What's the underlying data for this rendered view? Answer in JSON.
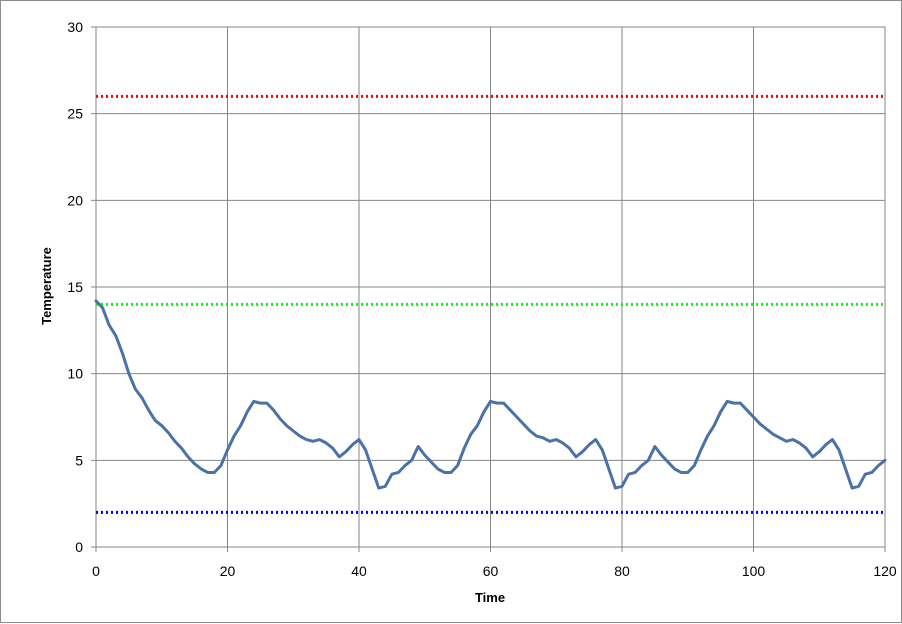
{
  "chart_data": {
    "type": "line",
    "title": "",
    "xlabel": "Time",
    "ylabel": "Temperature",
    "xlim": [
      0,
      120
    ],
    "ylim": [
      0,
      30
    ],
    "x_ticks": [
      0,
      20,
      40,
      60,
      80,
      100,
      120
    ],
    "y_ticks": [
      0,
      5,
      10,
      15,
      20,
      25,
      30
    ],
    "grid": true,
    "legend": "none",
    "reference_lines": [
      {
        "y": 26,
        "color": "#ff0000",
        "style": "dotted"
      },
      {
        "y": 14,
        "color": "#00ff00",
        "style": "dotted"
      },
      {
        "y": 2,
        "color": "#0000ff",
        "style": "dotted"
      }
    ],
    "series": [
      {
        "color": "#4a72a6",
        "x": [
          0,
          1,
          2,
          3,
          4,
          5,
          6,
          7,
          8,
          9,
          10,
          11,
          12,
          13,
          14,
          15,
          16,
          17,
          18,
          19,
          20,
          21,
          22,
          23,
          24,
          25,
          26,
          27,
          28,
          29,
          30,
          31,
          32,
          33,
          34,
          35,
          36,
          37,
          38,
          39,
          40,
          41,
          42,
          43,
          44,
          45,
          46,
          47,
          48,
          49,
          50,
          51,
          52,
          53,
          54,
          55,
          56,
          57,
          58,
          59,
          60,
          61,
          62,
          63,
          64,
          65,
          66,
          67,
          68,
          69,
          70,
          71,
          72,
          73,
          74,
          75,
          76,
          77,
          78,
          79,
          80,
          81,
          82,
          83,
          84,
          85,
          86,
          87,
          88,
          89,
          90,
          91,
          92,
          93,
          94,
          95,
          96,
          97,
          98,
          99,
          100,
          101,
          102,
          103,
          104,
          105,
          106,
          107,
          108,
          109,
          110,
          111,
          112,
          113,
          114,
          115,
          116,
          117,
          118,
          119,
          120
        ],
        "y": [
          14.2,
          13.8,
          12.8,
          12.2,
          11.2,
          10.0,
          9.1,
          8.6,
          7.9,
          7.3,
          7.0,
          6.6,
          6.1,
          5.7,
          5.2,
          4.8,
          4.5,
          4.3,
          4.3,
          4.7,
          5.6,
          6.4,
          7.0,
          7.8,
          8.4,
          8.3,
          8.3,
          7.9,
          7.4,
          7.0,
          6.7,
          6.4,
          6.2,
          6.1,
          6.2,
          6.0,
          5.7,
          5.2,
          5.5,
          5.9,
          6.2,
          5.6,
          4.5,
          3.4,
          3.5,
          4.2,
          4.3,
          4.7,
          5.0,
          5.8,
          5.3,
          4.9,
          4.5,
          4.3,
          4.3,
          4.7,
          5.7,
          6.5,
          7.0,
          7.8,
          8.4,
          8.3,
          8.3,
          7.9,
          7.5,
          7.1,
          6.7,
          6.4,
          6.3,
          6.1,
          6.2,
          6.0,
          5.7,
          5.2,
          5.5,
          5.9,
          6.2,
          5.6,
          4.5,
          3.4,
          3.5,
          4.2,
          4.3,
          4.7,
          5.0,
          5.8,
          5.3,
          4.9,
          4.5,
          4.3,
          4.3,
          4.7,
          5.6,
          6.4,
          7.0,
          7.8,
          8.4,
          8.3,
          8.3,
          7.9,
          7.5,
          7.1,
          6.8,
          6.5,
          6.3,
          6.1,
          6.2,
          6.0,
          5.7,
          5.2,
          5.5,
          5.9,
          6.2,
          5.6,
          4.5,
          3.4,
          3.5,
          4.2,
          4.3,
          4.7,
          5.0
        ]
      }
    ]
  }
}
